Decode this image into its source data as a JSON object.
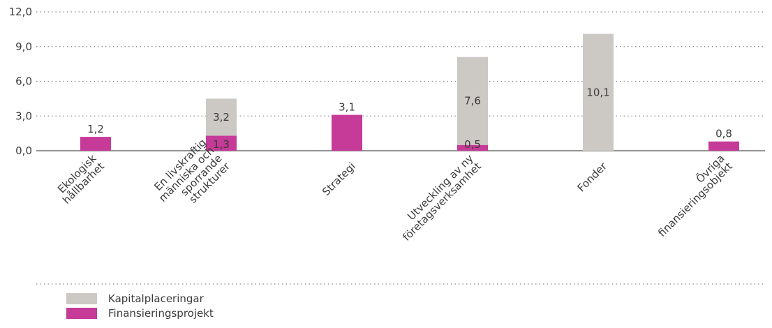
{
  "chart_data": {
    "type": "bar",
    "stacked": true,
    "categories": [
      [
        "Ekologisk",
        "hållbarhet"
      ],
      [
        "En livskraftig",
        "människa och",
        "sporrande",
        "strukturer"
      ],
      [
        "Strategi"
      ],
      [
        "Utveckling av ny",
        "företagsverksamhet"
      ],
      [
        "Fonder"
      ],
      [
        "Övriga",
        "finansieringsobjekt"
      ]
    ],
    "series": [
      {
        "name": "Finansieringsprojekt",
        "color": "#c63a98",
        "values": [
          1.2,
          1.3,
          3.1,
          0.5,
          null,
          0.8
        ],
        "labels": [
          "1,2",
          "1,3",
          "3,1",
          "0,5",
          "",
          "0,8"
        ]
      },
      {
        "name": "Kapitalplaceringar",
        "color": "#ccc9c5",
        "values": [
          null,
          3.2,
          null,
          7.6,
          10.1,
          null
        ],
        "labels": [
          "",
          "3,2",
          "",
          "7,6",
          "10,1",
          ""
        ]
      }
    ],
    "yticks": [
      "0,0",
      "3,0",
      "6,0",
      "9,0",
      "12,0"
    ],
    "ylim": [
      0,
      12
    ],
    "legend_order": [
      "Kapitalplaceringar",
      "Finansieringsprojekt"
    ],
    "legend_position": "bottom-left",
    "grid": "dotted-horizontal"
  }
}
